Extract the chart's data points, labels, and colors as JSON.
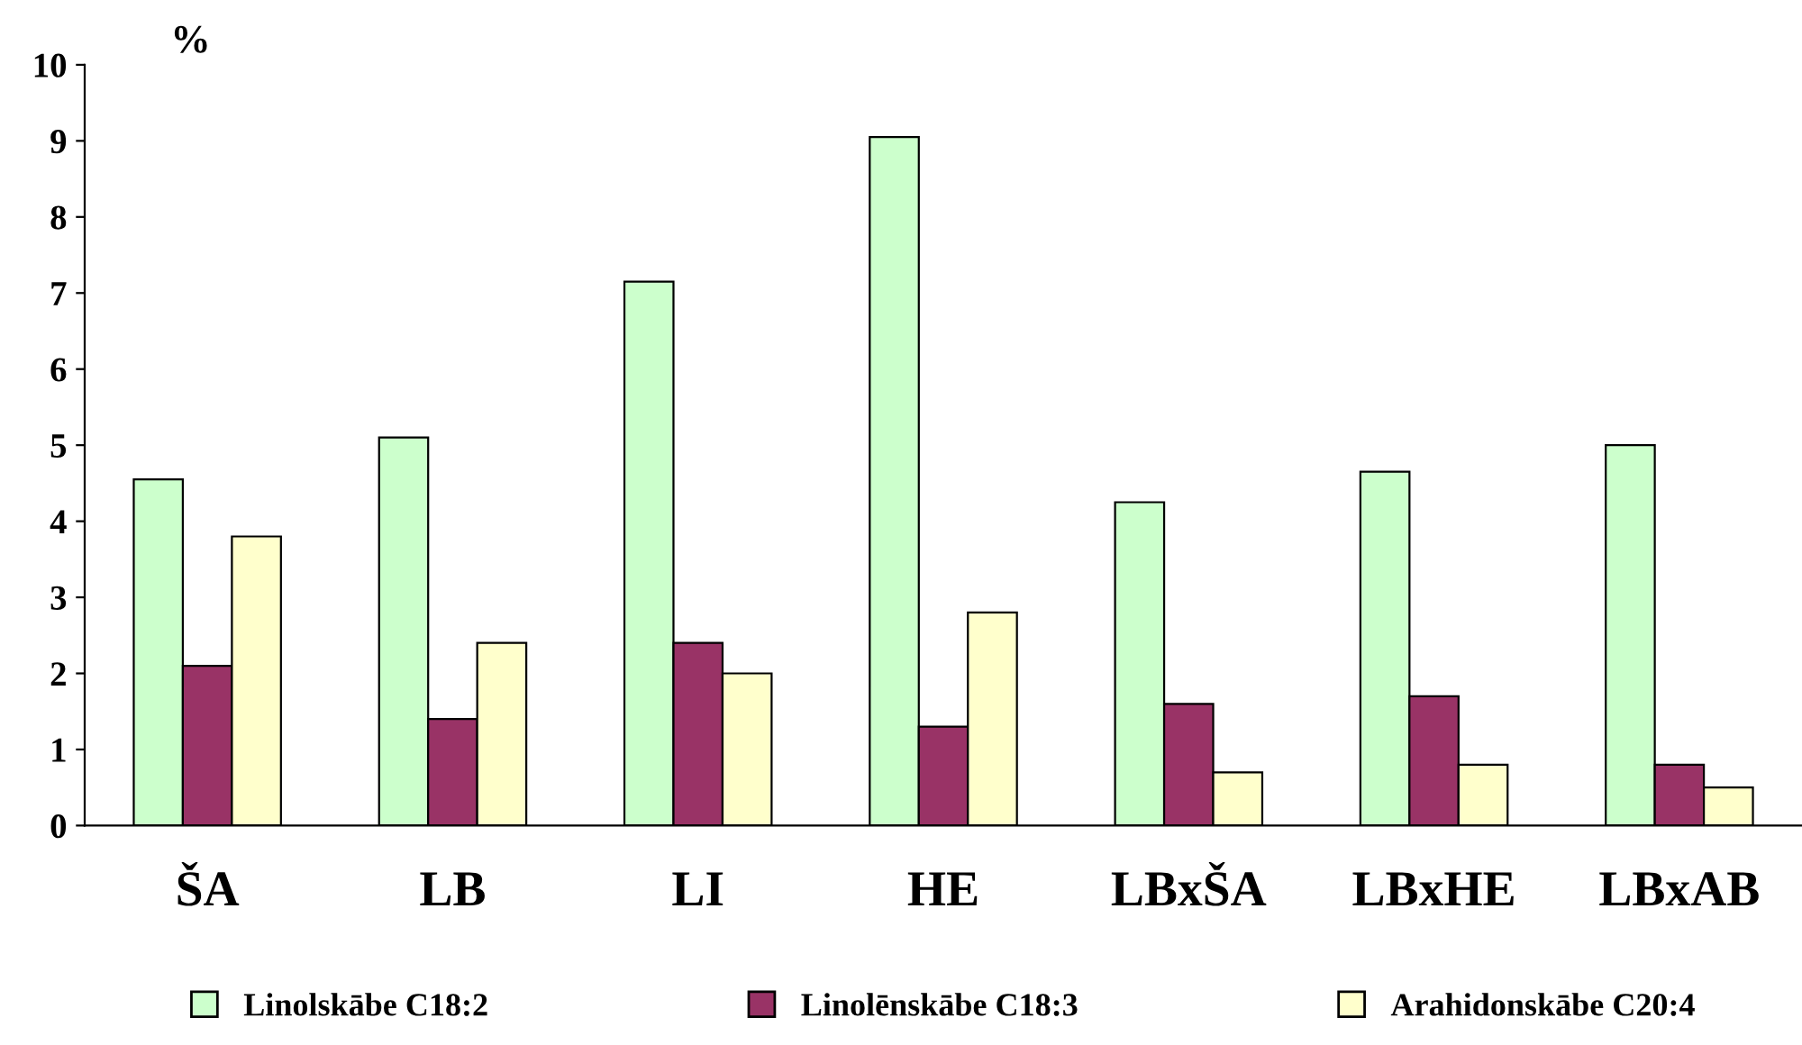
{
  "chart_data": {
    "type": "bar",
    "ylabel": "%",
    "categories": [
      "ŠA",
      "LB",
      "LI",
      "HE",
      "LBxŠA",
      "LBxHE",
      "LBxAB"
    ],
    "series": [
      {
        "name": "Linolskābe C18:2",
        "color": "#ccffcc",
        "values": [
          4.55,
          5.1,
          7.15,
          9.05,
          4.25,
          4.65,
          5.0
        ]
      },
      {
        "name": "Linolēnskābe C18:3",
        "color": "#993366",
        "values": [
          2.1,
          1.4,
          2.4,
          1.3,
          1.6,
          1.7,
          0.8
        ]
      },
      {
        "name": "Arahidonskābe C20:4",
        "color": "#ffffcc",
        "values": [
          3.8,
          2.4,
          2.0,
          2.8,
          0.7,
          0.8,
          0.5
        ]
      }
    ],
    "ylim": [
      0,
      10
    ],
    "yticks": [
      0,
      1,
      2,
      3,
      4,
      5,
      6,
      7,
      8,
      9,
      10
    ],
    "grid": false,
    "legend": "bottom"
  }
}
